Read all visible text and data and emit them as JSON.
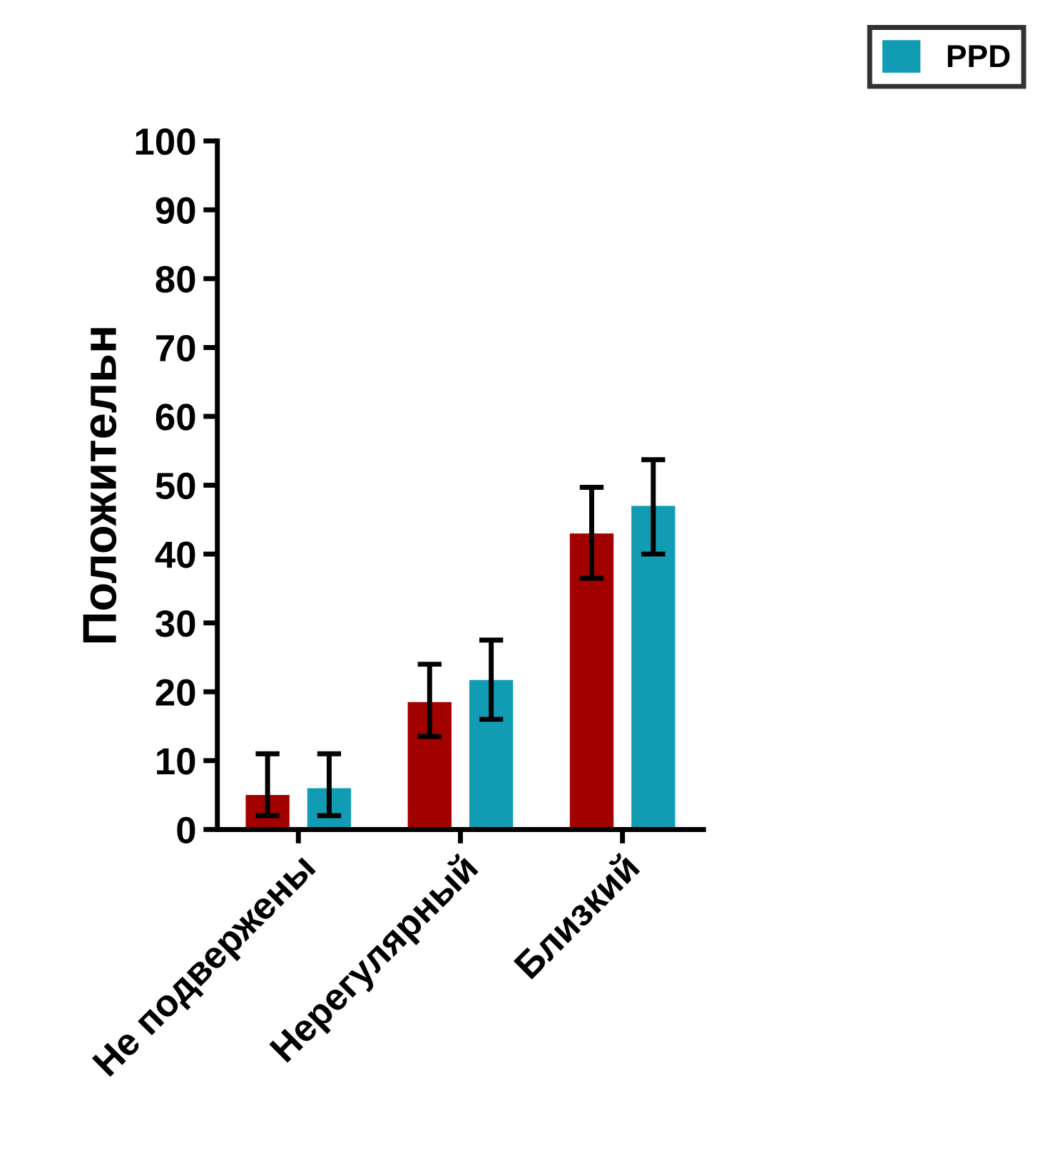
{
  "chart_data": {
    "type": "bar",
    "ylabel": "Положительн",
    "categories": [
      "Не подвержены",
      "Нерегулярный",
      "Близкий"
    ],
    "series": [
      {
        "color": "#a30000",
        "values": [
          5,
          18.5,
          43
        ],
        "errors": [
          [
            2,
            11
          ],
          [
            13.5,
            24
          ],
          [
            36.5,
            49.7
          ]
        ]
      },
      {
        "name": "PPD",
        "color": "#129cb3",
        "values": [
          6,
          21.7,
          47
        ],
        "errors": [
          [
            2,
            11
          ],
          [
            16,
            27.5
          ],
          [
            40,
            53.7
          ]
        ]
      }
    ],
    "ylim": [
      0,
      100
    ],
    "yticks": [
      0,
      10,
      20,
      30,
      40,
      50,
      60,
      70,
      80,
      90,
      100
    ],
    "grid": false,
    "legend": "top right"
  }
}
